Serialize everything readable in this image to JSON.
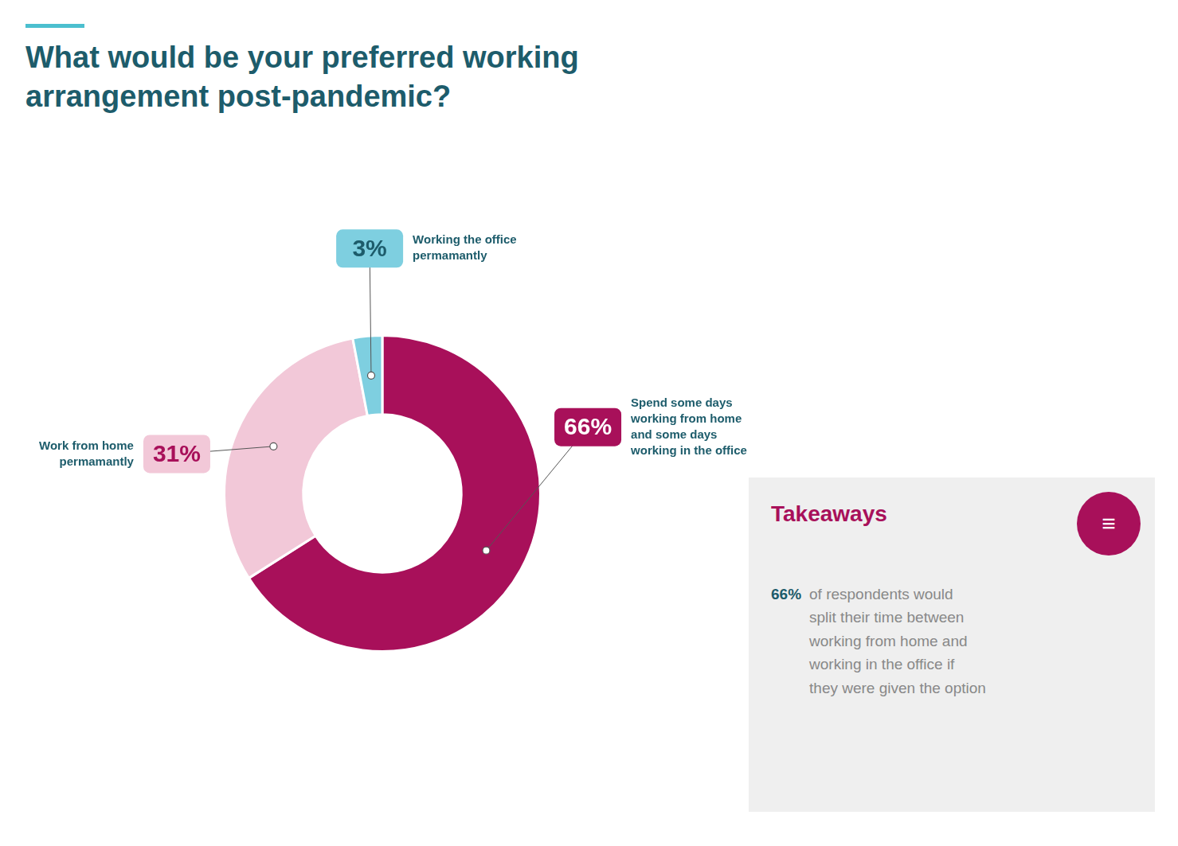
{
  "chart_data": {
    "type": "doughnut",
    "title": [
      "What would be your preferred working",
      "arrangement post-pandemic?"
    ],
    "categories": [
      "Spend some days\nworking from home\nand some days\nworking in the office",
      "Work from home\npermamantly",
      "Working the office\npermamantly"
    ],
    "values": [
      66,
      31,
      3
    ],
    "value_labels": [
      "66%",
      "31%",
      "3%"
    ],
    "data_labels": true,
    "colors": [
      "#a8105a",
      "#f2c8d8",
      "#7ecfe0"
    ],
    "annotations": [
      {
        "title": "Takeaways",
        "icon": "≡",
        "bold": "66%",
        "text": "of respondents would\nsplit their time between\nworking from home and\nworking in the office if\nthey were given the option"
      }
    ]
  }
}
